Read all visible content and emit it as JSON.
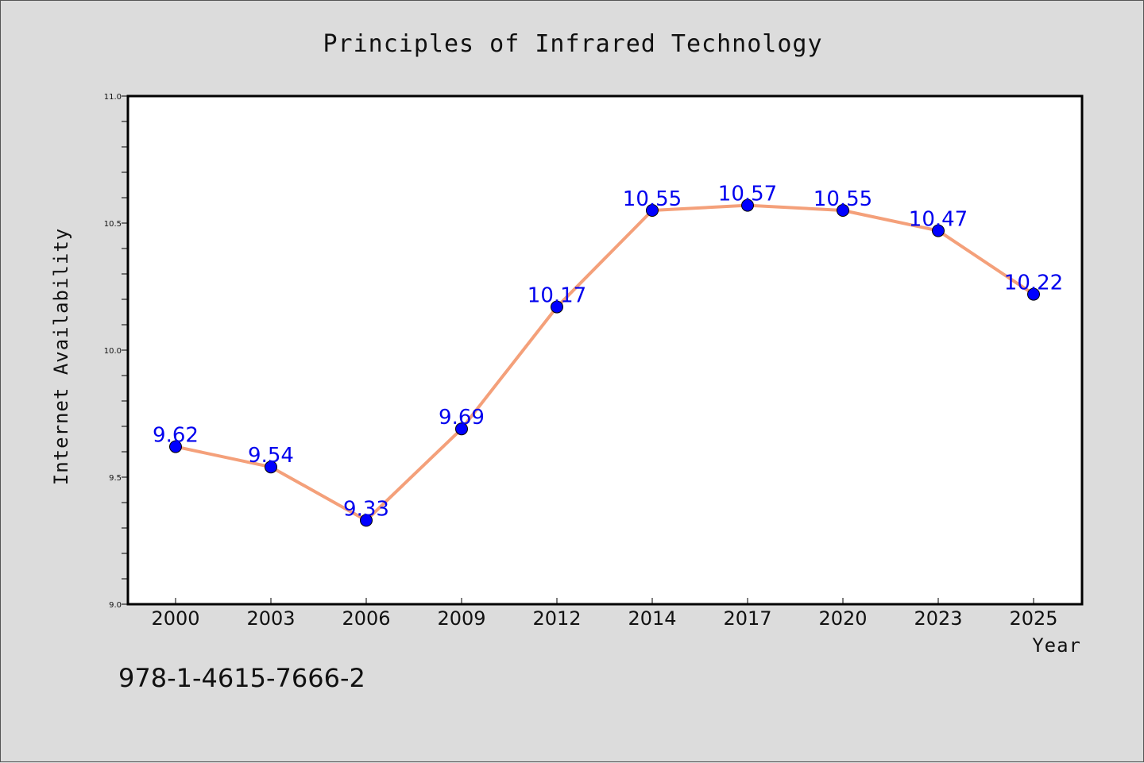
{
  "chart_data": {
    "type": "line",
    "title": "Principles of Infrared Technology",
    "xlabel": "Year",
    "ylabel": "Internet Availability",
    "categories": [
      "2000",
      "2003",
      "2006",
      "2009",
      "2012",
      "2014",
      "2017",
      "2020",
      "2023",
      "2025"
    ],
    "series": [
      {
        "values": [
          9.62,
          9.54,
          9.33,
          9.69,
          10.17,
          10.55,
          10.57,
          10.55,
          10.47,
          10.22
        ]
      }
    ],
    "data_labels": [
      "9.62",
      "9.54",
      "9.33",
      "9.69",
      "10.17",
      "10.55",
      "10.57",
      "10.55",
      "10.47",
      "10.22"
    ],
    "ylim": [
      9.0,
      11.0
    ],
    "yticks": [
      "9.0",
      "9.5",
      "10.0",
      "10.5",
      "11.0"
    ],
    "grid": false,
    "colors": {
      "line": "#f4a07a",
      "marker": "#0000ff",
      "label": "#0000ee",
      "background": "#dcdcdc",
      "plot_bg": "#ffffff"
    }
  },
  "footer": {
    "code": "978-1-4615-7666-2"
  }
}
